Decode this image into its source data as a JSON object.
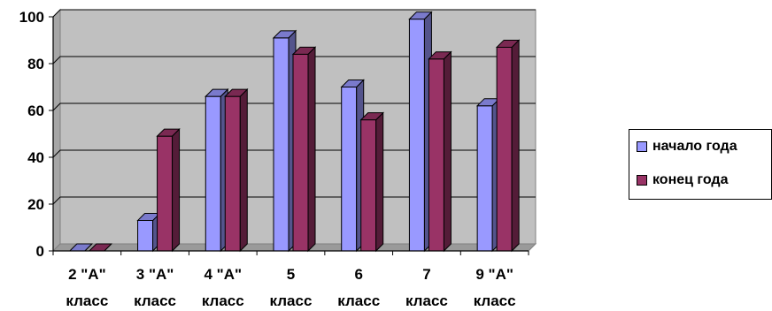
{
  "chart_data": {
    "type": "bar",
    "categories": [
      [
        "2 \"А\"",
        "класс"
      ],
      [
        "3 \"А\"",
        "класс"
      ],
      [
        "4 \"А\"",
        "класс"
      ],
      [
        "5",
        "класс"
      ],
      [
        "6",
        "класс"
      ],
      [
        "7",
        "класс"
      ],
      [
        "9 \"А\"",
        "класс"
      ]
    ],
    "series": [
      {
        "name": "начало года",
        "color": "#9999ff",
        "values": [
          0,
          13,
          66,
          91,
          70,
          99,
          62
        ]
      },
      {
        "name": "конец года",
        "color": "#993366",
        "values": [
          0,
          49,
          66,
          84,
          56,
          82,
          87
        ]
      }
    ],
    "ylim": [
      0,
      100
    ],
    "yticks": [
      0,
      20,
      40,
      60,
      80,
      100
    ],
    "grid": true,
    "plot_background": "#c0c0c0",
    "legend_placement": "right"
  }
}
